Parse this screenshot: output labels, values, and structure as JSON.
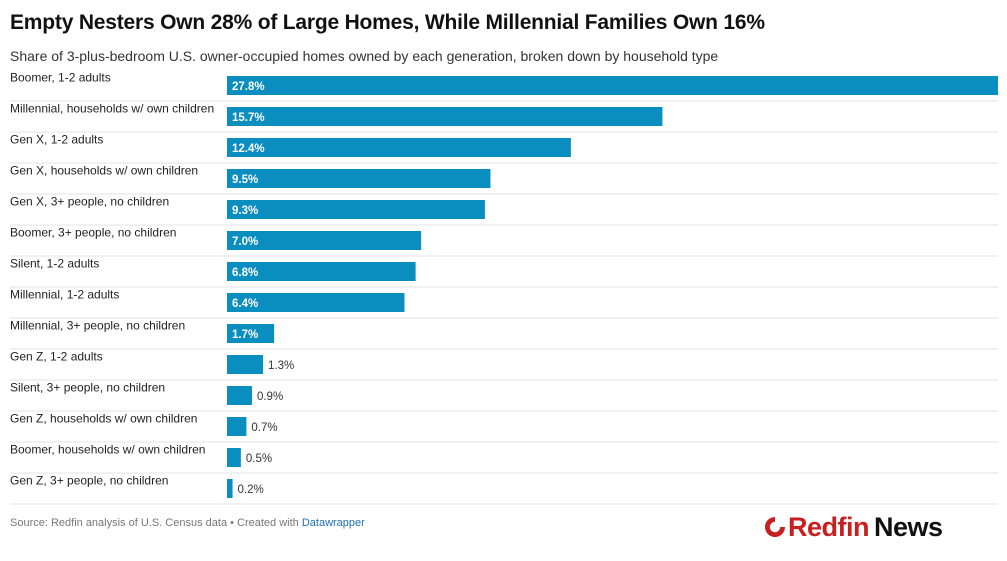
{
  "header": {
    "title": "Empty Nesters Own 28% of Large Homes, While Millennial Families Own 16%",
    "subtitle": "Share of 3-plus-bedroom U.S. owner-occupied homes owned by each generation, broken down by household type"
  },
  "footer": {
    "source": "Source: Redfin analysis of U.S. Census data • Created with ",
    "tool": "Datawrapper"
  },
  "logo": {
    "brand": "Redfin",
    "suffix": "News"
  },
  "colors": {
    "bar": "#0a8dbf",
    "label_inside": "#ffffff",
    "label_outside": "#333333",
    "gridline": "#e3e3e3",
    "brand_red": "#c82021"
  },
  "chart_data": {
    "type": "bar",
    "orientation": "horizontal",
    "categories": [
      "Boomer, 1-2 adults",
      "Millennial, households w/ own children",
      "Gen X, 1-2 adults",
      "Gen X, households w/ own children",
      "Gen X, 3+ people, no children",
      "Boomer, 3+ people, no children",
      "Silent, 1-2 adults",
      "Millennial, 1-2 adults",
      "Millennial, 3+ people, no children",
      "Gen Z, 1-2 adults",
      "Silent, 3+ people, no children",
      "Gen Z, households w/ own children",
      "Boomer, households w/ own children",
      "Gen Z, 3+ people, no children"
    ],
    "values": [
      27.8,
      15.7,
      12.4,
      9.5,
      9.3,
      7.0,
      6.8,
      6.4,
      1.7,
      1.3,
      0.9,
      0.7,
      0.5,
      0.2
    ],
    "value_labels": [
      "27.8%",
      "15.7%",
      "12.4%",
      "9.5%",
      "9.3%",
      "7.0%",
      "6.8%",
      "6.4%",
      "1.7%",
      "1.3%",
      "0.9%",
      "0.7%",
      "0.5%",
      "0.2%"
    ],
    "xlim": [
      0,
      27.8
    ],
    "grid": false,
    "legend": "none",
    "data_labels": true
  }
}
